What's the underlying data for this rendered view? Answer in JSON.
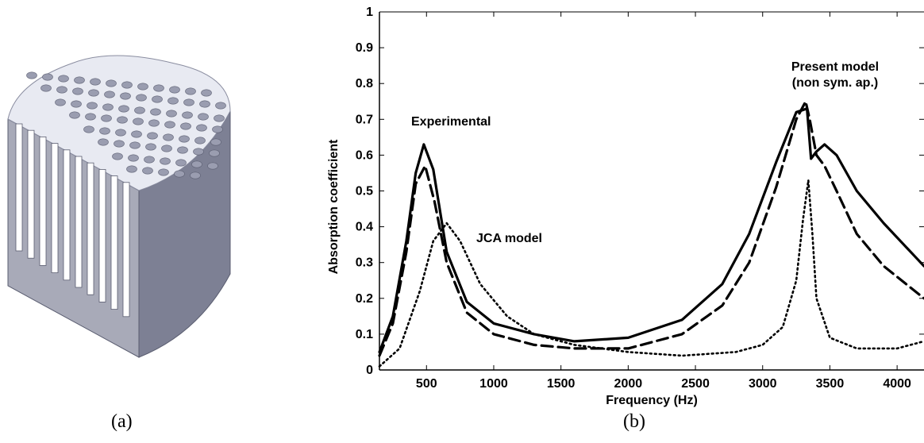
{
  "captions": {
    "a": "(a)",
    "b": "(b)"
  },
  "chart_data": {
    "type": "line",
    "title": "",
    "xlabel": "Frequency (Hz)",
    "ylabel": "Absorption coefficient",
    "xlim": [
      150,
      4200
    ],
    "ylim": [
      0,
      1
    ],
    "x_ticks": [
      500,
      1000,
      1500,
      2000,
      2500,
      3000,
      3500,
      4000
    ],
    "y_ticks": [
      0,
      0.1,
      0.2,
      0.3,
      0.4,
      0.5,
      0.6,
      0.7,
      0.8,
      0.9,
      1
    ],
    "grid": false,
    "annotations": [
      "Experimental",
      "JCA model",
      "Present model",
      "(non sym. ap.)"
    ],
    "series": [
      {
        "name": "Experimental",
        "style": "solid",
        "x": [
          150,
          250,
          350,
          420,
          480,
          550,
          650,
          800,
          1000,
          1300,
          1600,
          2000,
          2400,
          2700,
          2900,
          3100,
          3250,
          3330,
          3360,
          3400,
          3460,
          3550,
          3700,
          3900,
          4200
        ],
        "y": [
          0.05,
          0.15,
          0.36,
          0.55,
          0.63,
          0.56,
          0.33,
          0.19,
          0.13,
          0.1,
          0.08,
          0.09,
          0.14,
          0.24,
          0.38,
          0.58,
          0.72,
          0.73,
          0.59,
          0.61,
          0.63,
          0.6,
          0.5,
          0.41,
          0.29
        ]
      },
      {
        "name": "Present model (non sym. ap.)",
        "style": "dashed",
        "x": [
          150,
          250,
          350,
          420,
          490,
          560,
          650,
          800,
          1000,
          1300,
          1600,
          2000,
          2400,
          2700,
          2900,
          3100,
          3250,
          3320,
          3350,
          3400,
          3460,
          3550,
          3700,
          3900,
          4200
        ],
        "y": [
          0.04,
          0.13,
          0.33,
          0.52,
          0.57,
          0.47,
          0.3,
          0.16,
          0.1,
          0.07,
          0.06,
          0.06,
          0.1,
          0.18,
          0.3,
          0.51,
          0.7,
          0.75,
          0.7,
          0.6,
          0.57,
          0.5,
          0.38,
          0.29,
          0.2
        ]
      },
      {
        "name": "JCA model",
        "style": "dotted",
        "x": [
          150,
          300,
          450,
          550,
          650,
          750,
          900,
          1100,
          1300,
          1600,
          2000,
          2400,
          2800,
          3000,
          3150,
          3250,
          3300,
          3340,
          3370,
          3400,
          3500,
          3700,
          4000,
          4200
        ],
        "y": [
          0.01,
          0.06,
          0.22,
          0.36,
          0.41,
          0.36,
          0.24,
          0.15,
          0.1,
          0.07,
          0.05,
          0.04,
          0.05,
          0.07,
          0.12,
          0.25,
          0.42,
          0.53,
          0.38,
          0.2,
          0.09,
          0.06,
          0.06,
          0.08
        ]
      }
    ]
  }
}
